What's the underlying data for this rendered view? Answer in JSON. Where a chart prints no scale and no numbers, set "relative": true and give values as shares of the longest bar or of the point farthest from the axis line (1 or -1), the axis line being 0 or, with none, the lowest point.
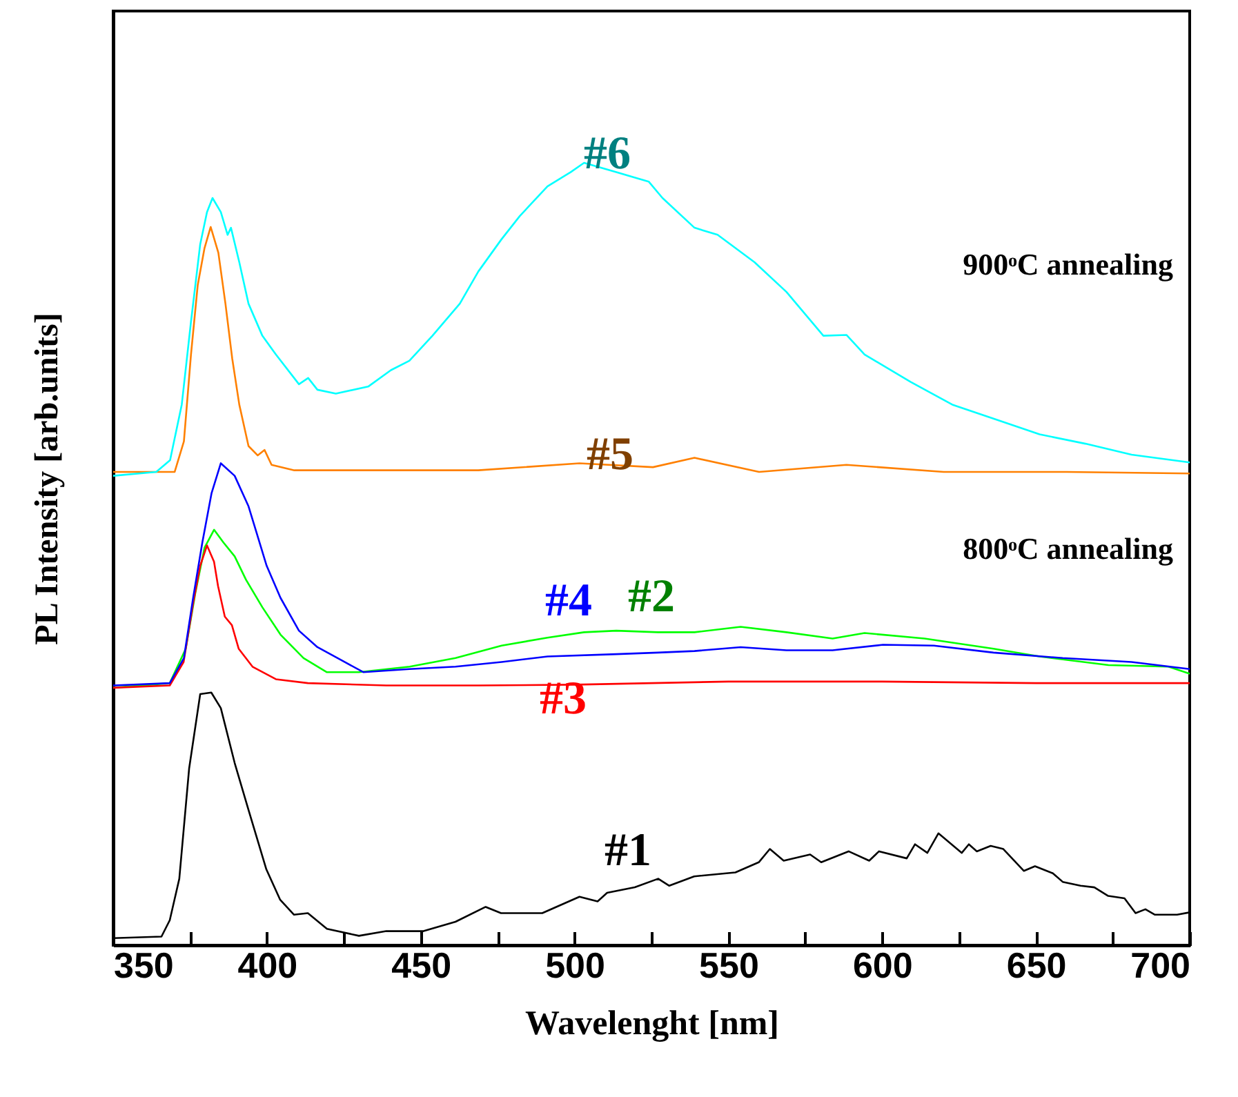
{
  "chart_data": {
    "type": "line",
    "relative": true,
    "xlabel": "Wavelenght [nm]",
    "ylabel": "PL Intensity [arb.units]",
    "xlim": [
      350,
      700
    ],
    "xticks": [
      350,
      {
        "value": 375,
        "label": null
      },
      400,
      {
        "value": 425,
        "label": null
      },
      450,
      {
        "value": 475,
        "label": null
      },
      500,
      {
        "value": 525,
        "label": null
      },
      550,
      {
        "value": 575,
        "label": null
      },
      600,
      {
        "value": 625,
        "label": null
      },
      650,
      {
        "value": 675,
        "label": null
      },
      700
    ],
    "grid": false,
    "line_style": "solid",
    "series": [
      {
        "name": "#1",
        "color": "#000000",
        "x": [
          350,
          365.7,
          368.4,
          371.5,
          374.7,
          378.3,
          381.9,
          385,
          389.5,
          394,
          399.8,
          404.3,
          408.8,
          413.3,
          419.5,
          429.9,
          438.8,
          450.9,
          461.3,
          471.1,
          476.1,
          489.5,
          501.6,
          507.5,
          510.6,
          519.6,
          527.2,
          530.8,
          538.9,
          552.3,
          559.9,
          563.5,
          568,
          576.6,
          580.2,
          589.1,
          595.8,
          599,
          608,
          610.7,
          614.7,
          618.3,
          625.9,
          628.2,
          630.8,
          635.3,
          639.4,
          646.1,
          649.7,
          655.5,
          658.7,
          664.5,
          669,
          673.5,
          678.8,
          682.4,
          685.6,
          688.7,
          695.9,
          700
        ],
        "values": [
          0.009,
          0.011,
          0.032,
          0.085,
          0.226,
          0.321,
          0.323,
          0.303,
          0.233,
          0.173,
          0.097,
          0.058,
          0.039,
          0.041,
          0.021,
          0.012,
          0.018,
          0.018,
          0.03,
          0.049,
          0.041,
          0.041,
          0.062,
          0.056,
          0.067,
          0.074,
          0.085,
          0.076,
          0.088,
          0.093,
          0.106,
          0.123,
          0.108,
          0.116,
          0.106,
          0.12,
          0.108,
          0.12,
          0.111,
          0.129,
          0.118,
          0.143,
          0.118,
          0.129,
          0.12,
          0.127,
          0.123,
          0.095,
          0.101,
          0.092,
          0.081,
          0.076,
          0.074,
          0.063,
          0.06,
          0.041,
          0.046,
          0.039,
          0.039,
          0.042
        ]
      },
      {
        "name": "#2",
        "color": "#00ff00",
        "x": [
          350,
          368.4,
          373.6,
          376.7,
          379.7,
          382.8,
          385.8,
          389.5,
          393.2,
          398.5,
          404.4,
          411.9,
          419.4,
          429.9,
          446.4,
          461.3,
          476.3,
          491.2,
          503.1,
          513.6,
          527.1,
          539,
          554,
          568.9,
          583.9,
          594.3,
          613.8,
          636.2,
          651.2,
          673.6,
          693.1,
          700
        ],
        "values": [
          0.329,
          0.335,
          0.379,
          0.45,
          0.508,
          0.531,
          0.515,
          0.497,
          0.467,
          0.432,
          0.397,
          0.367,
          0.349,
          0.349,
          0.356,
          0.367,
          0.383,
          0.393,
          0.4,
          0.402,
          0.4,
          0.4,
          0.407,
          0.4,
          0.392,
          0.399,
          0.392,
          0.379,
          0.369,
          0.358,
          0.356,
          0.347
        ]
      },
      {
        "name": "#3",
        "color": "#ff0000",
        "x": [
          350,
          368.4,
          372.9,
          376,
          378.3,
          380.5,
          382.8,
          384.1,
          386.3,
          388.6,
          390.8,
          395.3,
          402.9,
          413.3,
          438.8,
          468.9,
          500,
          550,
          600,
          650,
          700
        ],
        "values": [
          0.329,
          0.332,
          0.362,
          0.437,
          0.485,
          0.511,
          0.49,
          0.459,
          0.42,
          0.409,
          0.379,
          0.356,
          0.34,
          0.335,
          0.332,
          0.332,
          0.333,
          0.337,
          0.337,
          0.335,
          0.335
        ]
      },
      {
        "name": "#4",
        "color": "#0000ff",
        "x": [
          350,
          368.4,
          373,
          376,
          379,
          382,
          385,
          389.5,
          394,
          399.9,
          404.4,
          410.4,
          416.4,
          423.9,
          431.3,
          446.3,
          461.3,
          476.3,
          491.2,
          513.6,
          527.1,
          539,
          554,
          568.9,
          583.9,
          600.3,
          616.8,
          636.2,
          658.7,
          681.1,
          700
        ],
        "values": [
          0.332,
          0.335,
          0.367,
          0.444,
          0.515,
          0.578,
          0.616,
          0.6,
          0.561,
          0.485,
          0.444,
          0.402,
          0.381,
          0.365,
          0.349,
          0.353,
          0.356,
          0.362,
          0.369,
          0.372,
          0.374,
          0.376,
          0.381,
          0.377,
          0.377,
          0.384,
          0.383,
          0.374,
          0.367,
          0.362,
          0.353
        ]
      },
      {
        "name": "#5",
        "color": "#ff8000",
        "x": [
          350,
          370,
          373,
          375.3,
          377.5,
          379.7,
          381.7,
          384.2,
          386.5,
          388.7,
          391,
          394,
          397,
          399.2,
          401.5,
          408.9,
          438.8,
          468.7,
          501.6,
          525.5,
          539,
          560,
          588.4,
          620,
          660,
          700
        ],
        "values": [
          0.605,
          0.605,
          0.644,
          0.755,
          0.844,
          0.891,
          0.918,
          0.885,
          0.82,
          0.75,
          0.691,
          0.638,
          0.626,
          0.633,
          0.614,
          0.607,
          0.607,
          0.607,
          0.616,
          0.611,
          0.623,
          0.605,
          0.614,
          0.605,
          0.605,
          0.603
        ]
      },
      {
        "name": "#6",
        "color": "#00ffff",
        "x": [
          350,
          364,
          368.5,
          372.3,
          375.3,
          378.3,
          380.5,
          382.3,
          385,
          387.2,
          388.3,
          391,
          394,
          398.5,
          402.9,
          410.4,
          413.4,
          416.4,
          422.4,
          432.9,
          440.3,
          446.3,
          453.8,
          462.7,
          468.7,
          476.2,
          482.2,
          491.2,
          498.7,
          503.1,
          513.6,
          524.1,
          528.6,
          539,
          546.5,
          558.5,
          568.9,
          580.9,
          588.4,
          594.3,
          609.3,
          622.8,
          636.2,
          651.2,
          666.1,
          681.1,
          700
        ],
        "values": [
          0.6,
          0.605,
          0.62,
          0.691,
          0.797,
          0.896,
          0.937,
          0.955,
          0.937,
          0.908,
          0.917,
          0.873,
          0.82,
          0.779,
          0.755,
          0.717,
          0.725,
          0.71,
          0.705,
          0.714,
          0.735,
          0.747,
          0.779,
          0.82,
          0.861,
          0.902,
          0.932,
          0.97,
          0.988,
          1,
          0.988,
          0.976,
          0.955,
          0.917,
          0.908,
          0.873,
          0.835,
          0.779,
          0.78,
          0.755,
          0.72,
          0.691,
          0.673,
          0.653,
          0.641,
          0.627,
          0.617
        ]
      }
    ],
    "annotations": [
      "900ᵒC annealing",
      "800ᵒC annealing"
    ]
  }
}
